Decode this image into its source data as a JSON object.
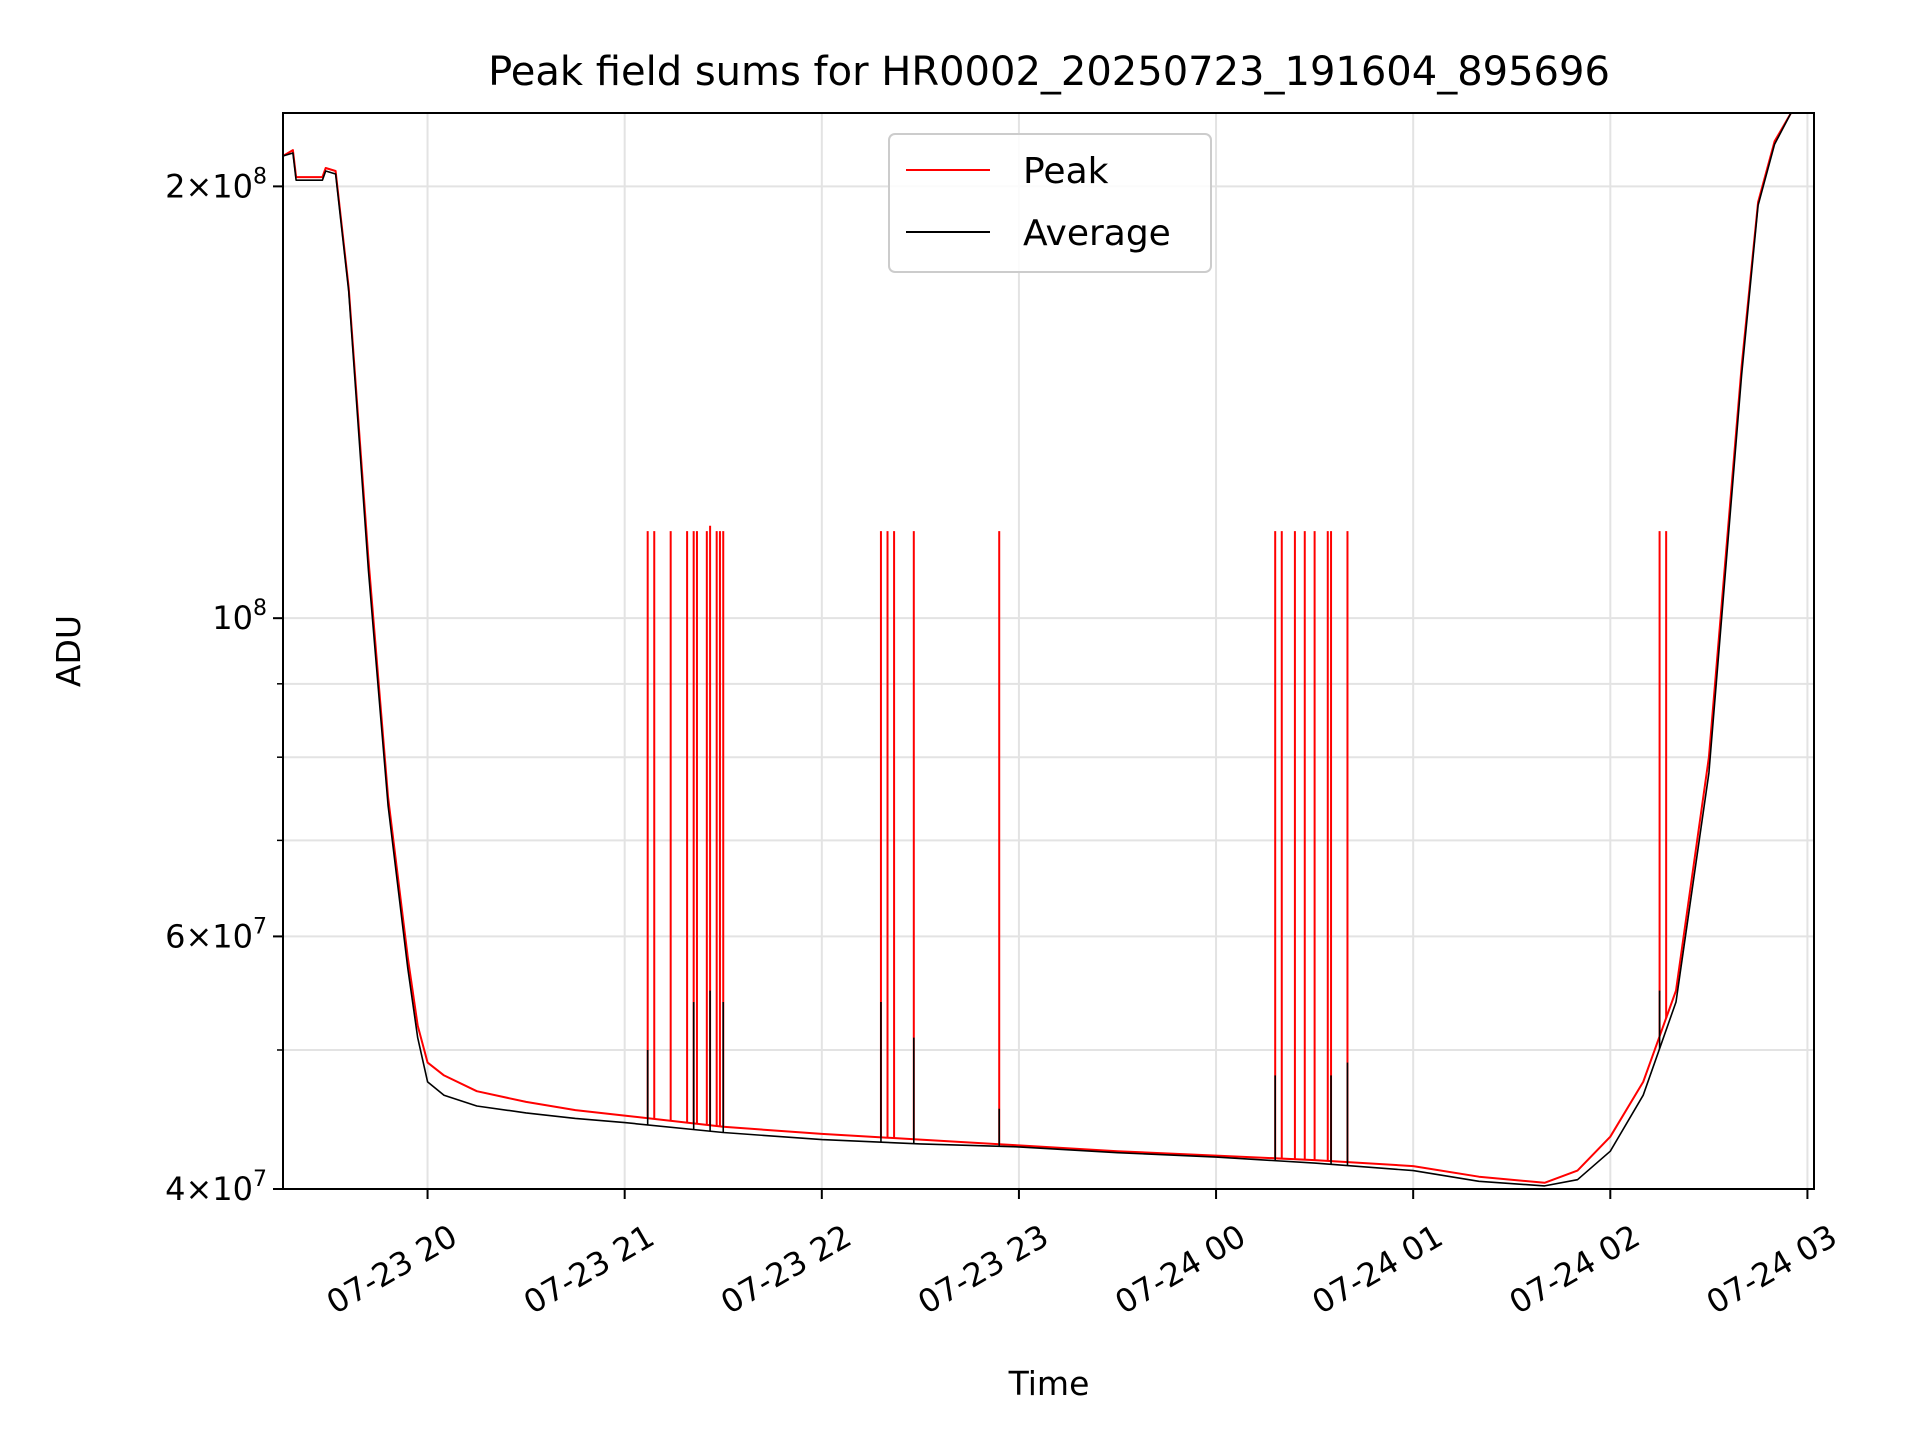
{
  "chart_data": {
    "type": "line",
    "title": "Peak field sums for HR0002_20250723_191604_895696",
    "xlabel": "Time",
    "ylabel": "ADU",
    "y_scale": "log",
    "ylim": [
      40000000,
      225000000
    ],
    "xlim": [
      "2025-07-23 19:16",
      "2025-07-24 03:02"
    ],
    "grid": true,
    "legend_position": "top-center",
    "x_ticks": [
      {
        "t": "2025-07-23 20:00",
        "label": "07-23 20"
      },
      {
        "t": "2025-07-23 21:00",
        "label": "07-23 21"
      },
      {
        "t": "2025-07-23 22:00",
        "label": "07-23 22"
      },
      {
        "t": "2025-07-23 23:00",
        "label": "07-23 23"
      },
      {
        "t": "2025-07-24 00:00",
        "label": "07-24 00"
      },
      {
        "t": "2025-07-24 01:00",
        "label": "07-24 01"
      },
      {
        "t": "2025-07-24 02:00",
        "label": "07-24 02"
      },
      {
        "t": "2025-07-24 03:00",
        "label": "07-24 03"
      }
    ],
    "y_ticks": [
      {
        "v": 40000000,
        "base": "4",
        "exp": "7"
      },
      {
        "v": 60000000,
        "base": "6",
        "exp": "7"
      },
      {
        "v": 100000000,
        "base": "",
        "exp": "8"
      },
      {
        "v": 200000000,
        "base": "2",
        "exp": "8"
      }
    ],
    "y_minor_ticks": [
      50000000,
      70000000,
      80000000,
      90000000
    ],
    "series": [
      {
        "name": "Peak",
        "color": "#ff0000",
        "x": [
          "2025-07-23 19:16",
          "2025-07-23 19:19",
          "2025-07-23 19:20",
          "2025-07-23 19:28",
          "2025-07-23 19:29",
          "2025-07-23 19:32",
          "2025-07-23 19:36",
          "2025-07-23 19:42",
          "2025-07-23 19:48",
          "2025-07-23 19:54",
          "2025-07-23 19:57",
          "2025-07-23 20:00",
          "2025-07-23 20:05",
          "2025-07-23 20:15",
          "2025-07-23 20:30",
          "2025-07-23 20:45",
          "2025-07-23 21:00",
          "2025-07-23 21:30",
          "2025-07-23 22:00",
          "2025-07-23 22:30",
          "2025-07-23 23:00",
          "2025-07-23 23:30",
          "2025-07-24 00:00",
          "2025-07-24 00:30",
          "2025-07-24 01:00",
          "2025-07-24 01:20",
          "2025-07-24 01:40",
          "2025-07-24 01:50",
          "2025-07-24 02:00",
          "2025-07-24 02:10",
          "2025-07-24 02:20",
          "2025-07-24 02:30",
          "2025-07-24 02:40",
          "2025-07-24 02:45",
          "2025-07-24 02:50",
          "2025-07-24 02:55"
        ],
        "y": [
          210000000,
          212000000,
          203000000,
          203000000,
          206000000,
          205000000,
          170000000,
          110000000,
          75000000,
          58000000,
          52000000,
          49000000,
          48000000,
          46800000,
          46000000,
          45400000,
          45000000,
          44200000,
          43700000,
          43300000,
          42900000,
          42500000,
          42200000,
          41900000,
          41500000,
          40800000,
          40400000,
          41200000,
          43500000,
          47500000,
          55000000,
          80000000,
          150000000,
          195000000,
          215000000,
          225000000
        ],
        "spikes": [
          {
            "t": "2025-07-23 21:07",
            "y": 115000000
          },
          {
            "t": "2025-07-23 21:09",
            "y": 115000000
          },
          {
            "t": "2025-07-23 21:14",
            "y": 115000000
          },
          {
            "t": "2025-07-23 21:19",
            "y": 115000000
          },
          {
            "t": "2025-07-23 21:21",
            "y": 115000000
          },
          {
            "t": "2025-07-23 21:22",
            "y": 115000000
          },
          {
            "t": "2025-07-23 21:25",
            "y": 115000000
          },
          {
            "t": "2025-07-23 21:26",
            "y": 116000000
          },
          {
            "t": "2025-07-23 21:28",
            "y": 115000000
          },
          {
            "t": "2025-07-23 21:29",
            "y": 115000000
          },
          {
            "t": "2025-07-23 21:30",
            "y": 115000000
          },
          {
            "t": "2025-07-23 22:18",
            "y": 115000000
          },
          {
            "t": "2025-07-23 22:20",
            "y": 115000000
          },
          {
            "t": "2025-07-23 22:22",
            "y": 115000000
          },
          {
            "t": "2025-07-23 22:28",
            "y": 115000000
          },
          {
            "t": "2025-07-23 22:54",
            "y": 115000000
          },
          {
            "t": "2025-07-24 00:18",
            "y": 115000000
          },
          {
            "t": "2025-07-24 00:20",
            "y": 115000000
          },
          {
            "t": "2025-07-24 00:24",
            "y": 115000000
          },
          {
            "t": "2025-07-24 00:27",
            "y": 115000000
          },
          {
            "t": "2025-07-24 00:30",
            "y": 115000000
          },
          {
            "t": "2025-07-24 00:34",
            "y": 115000000
          },
          {
            "t": "2025-07-24 00:35",
            "y": 115000000
          },
          {
            "t": "2025-07-24 00:40",
            "y": 115000000
          },
          {
            "t": "2025-07-24 02:15",
            "y": 115000000
          },
          {
            "t": "2025-07-24 02:17",
            "y": 115000000
          }
        ]
      },
      {
        "name": "Average",
        "color": "#000000",
        "x": [
          "2025-07-23 19:16",
          "2025-07-23 19:19",
          "2025-07-23 19:20",
          "2025-07-23 19:28",
          "2025-07-23 19:29",
          "2025-07-23 19:32",
          "2025-07-23 19:36",
          "2025-07-23 19:42",
          "2025-07-23 19:48",
          "2025-07-23 19:54",
          "2025-07-23 19:57",
          "2025-07-23 20:00",
          "2025-07-23 20:05",
          "2025-07-23 20:15",
          "2025-07-23 20:30",
          "2025-07-23 20:45",
          "2025-07-23 21:00",
          "2025-07-23 21:30",
          "2025-07-23 22:00",
          "2025-07-23 22:30",
          "2025-07-23 23:00",
          "2025-07-23 23:30",
          "2025-07-24 00:00",
          "2025-07-24 00:30",
          "2025-07-24 01:00",
          "2025-07-24 01:20",
          "2025-07-24 01:40",
          "2025-07-24 01:50",
          "2025-07-24 02:00",
          "2025-07-24 02:10",
          "2025-07-24 02:20",
          "2025-07-24 02:30",
          "2025-07-24 02:40",
          "2025-07-24 02:45",
          "2025-07-24 02:50",
          "2025-07-24 02:55"
        ],
        "y": [
          210000000,
          211000000,
          202000000,
          202000000,
          205000000,
          204000000,
          169000000,
          108000000,
          74000000,
          57000000,
          51000000,
          47500000,
          46500000,
          45700000,
          45200000,
          44800000,
          44500000,
          43800000,
          43300000,
          43000000,
          42800000,
          42400000,
          42100000,
          41700000,
          41200000,
          40500000,
          40200000,
          40600000,
          42500000,
          46500000,
          54000000,
          78000000,
          148000000,
          194000000,
          214000000,
          225000000
        ],
        "spikes": [
          {
            "t": "2025-07-23 21:07",
            "y": 50000000
          },
          {
            "t": "2025-07-23 21:21",
            "y": 54000000
          },
          {
            "t": "2025-07-23 21:26",
            "y": 55000000
          },
          {
            "t": "2025-07-23 21:30",
            "y": 54000000
          },
          {
            "t": "2025-07-23 22:18",
            "y": 54000000
          },
          {
            "t": "2025-07-23 22:28",
            "y": 51000000
          },
          {
            "t": "2025-07-23 22:54",
            "y": 45500000
          },
          {
            "t": "2025-07-24 00:18",
            "y": 48000000
          },
          {
            "t": "2025-07-24 00:35",
            "y": 48000000
          },
          {
            "t": "2025-07-24 00:40",
            "y": 49000000
          },
          {
            "t": "2025-07-24 02:15",
            "y": 55000000
          }
        ]
      }
    ]
  }
}
